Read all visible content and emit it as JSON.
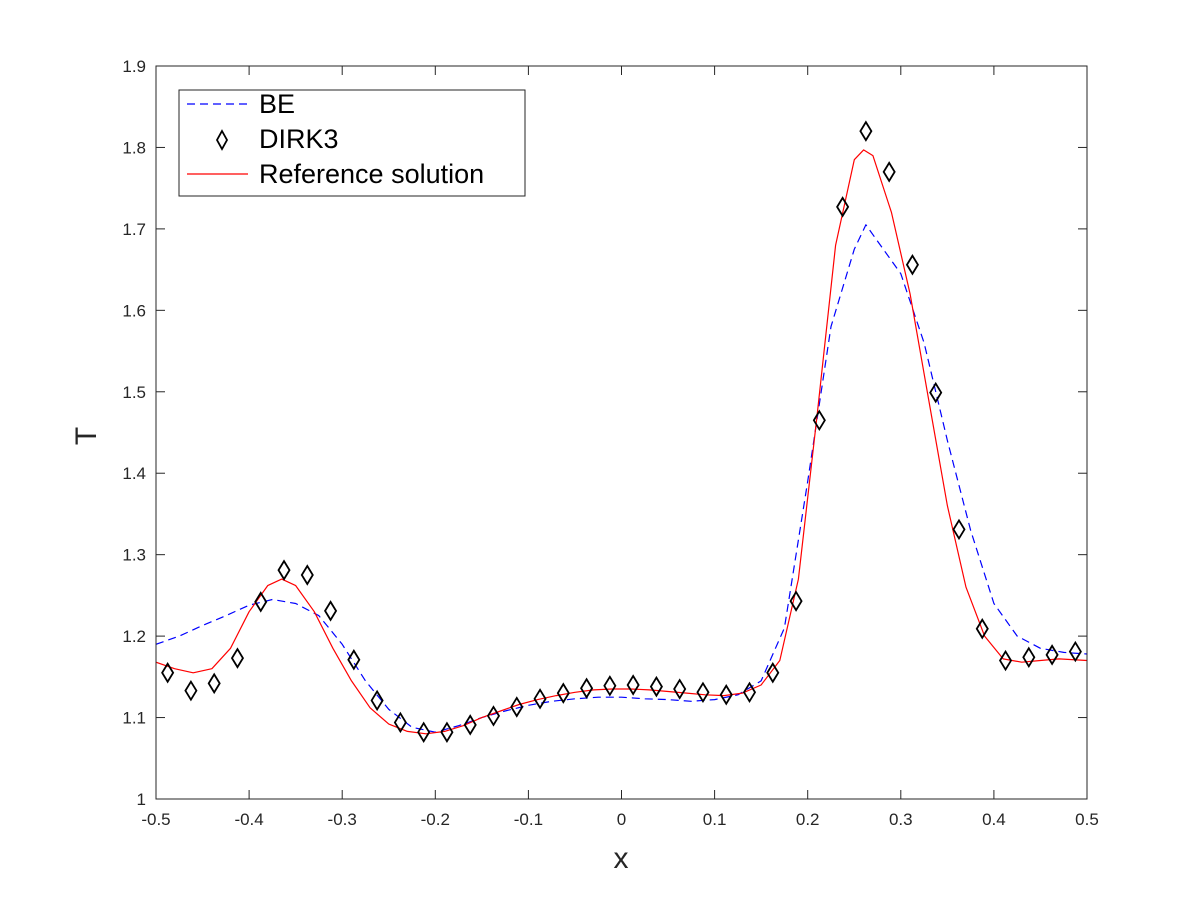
{
  "chart_data": {
    "type": "line",
    "xlabel": "x",
    "ylabel": "T",
    "xlim": [
      -0.5,
      0.5
    ],
    "ylim": [
      1.0,
      1.9
    ],
    "xticks": [
      -0.5,
      -0.4,
      -0.3,
      -0.2,
      -0.1,
      0,
      0.1,
      0.2,
      0.3,
      0.4,
      0.5
    ],
    "xtick_labels": [
      "-0.5",
      "-0.4",
      "-0.3",
      "-0.2",
      "-0.1",
      "0",
      "0.1",
      "0.2",
      "0.3",
      "0.4",
      "0.5"
    ],
    "yticks": [
      1.0,
      1.1,
      1.2,
      1.3,
      1.4,
      1.5,
      1.6,
      1.7,
      1.8,
      1.9
    ],
    "ytick_labels": [
      "1",
      "1.1",
      "1.2",
      "1.3",
      "1.4",
      "1.5",
      "1.6",
      "1.7",
      "1.8",
      "1.9"
    ],
    "grid": false,
    "legend_position": "top-left",
    "series": [
      {
        "name": "BE",
        "style": "dashed-line",
        "color": "#0000ff",
        "x": [
          -0.5,
          -0.475,
          -0.45,
          -0.425,
          -0.4,
          -0.375,
          -0.35,
          -0.325,
          -0.3,
          -0.275,
          -0.25,
          -0.225,
          -0.2,
          -0.175,
          -0.15,
          -0.125,
          -0.1,
          -0.075,
          -0.05,
          -0.025,
          0,
          0.025,
          0.05,
          0.075,
          0.1,
          0.125,
          0.15,
          0.175,
          0.2,
          0.225,
          0.25,
          0.2625,
          0.275,
          0.3,
          0.325,
          0.35,
          0.375,
          0.4,
          0.425,
          0.45,
          0.475,
          0.5
        ],
        "y": [
          1.19,
          1.2,
          1.213,
          1.225,
          1.238,
          1.245,
          1.24,
          1.225,
          1.19,
          1.145,
          1.11,
          1.088,
          1.082,
          1.09,
          1.1,
          1.108,
          1.115,
          1.12,
          1.123,
          1.125,
          1.125,
          1.123,
          1.122,
          1.12,
          1.122,
          1.128,
          1.145,
          1.21,
          1.39,
          1.58,
          1.675,
          1.705,
          1.685,
          1.645,
          1.56,
          1.44,
          1.33,
          1.24,
          1.2,
          1.185,
          1.18,
          1.178
        ]
      },
      {
        "name": "DIRK3",
        "style": "diamond-markers",
        "color": "#000000",
        "x": [
          -0.4875,
          -0.4625,
          -0.4375,
          -0.4125,
          -0.3875,
          -0.3625,
          -0.3375,
          -0.3125,
          -0.2875,
          -0.2625,
          -0.2375,
          -0.2125,
          -0.1875,
          -0.1625,
          -0.1375,
          -0.1125,
          -0.0875,
          -0.0625,
          -0.0375,
          -0.0125,
          0.0125,
          0.0375,
          0.0625,
          0.0875,
          0.1125,
          0.1375,
          0.1625,
          0.1875,
          0.2125,
          0.2375,
          0.2625,
          0.2875,
          0.3125,
          0.3375,
          0.3625,
          0.3875,
          0.4125,
          0.4375,
          0.4625,
          0.4875
        ],
        "y": [
          1.155,
          1.133,
          1.142,
          1.173,
          1.242,
          1.281,
          1.275,
          1.231,
          1.171,
          1.121,
          1.094,
          1.082,
          1.082,
          1.091,
          1.102,
          1.113,
          1.123,
          1.13,
          1.136,
          1.139,
          1.14,
          1.138,
          1.135,
          1.131,
          1.128,
          1.131,
          1.155,
          1.243,
          1.465,
          1.727,
          1.82,
          1.77,
          1.656,
          1.499,
          1.331,
          1.209,
          1.17,
          1.174,
          1.177,
          1.181
        ]
      },
      {
        "name": "Reference solution",
        "style": "solid-line",
        "color": "#ff0000",
        "x": [
          -0.5,
          -0.48,
          -0.46,
          -0.44,
          -0.42,
          -0.4,
          -0.38,
          -0.365,
          -0.35,
          -0.33,
          -0.31,
          -0.29,
          -0.27,
          -0.25,
          -0.23,
          -0.21,
          -0.19,
          -0.17,
          -0.15,
          -0.13,
          -0.11,
          -0.09,
          -0.07,
          -0.05,
          -0.03,
          -0.01,
          0.01,
          0.03,
          0.05,
          0.07,
          0.09,
          0.11,
          0.13,
          0.15,
          0.17,
          0.19,
          0.21,
          0.23,
          0.25,
          0.26,
          0.27,
          0.29,
          0.31,
          0.33,
          0.35,
          0.37,
          0.39,
          0.41,
          0.43,
          0.45,
          0.47,
          0.5
        ],
        "y": [
          1.168,
          1.16,
          1.155,
          1.16,
          1.185,
          1.23,
          1.262,
          1.27,
          1.262,
          1.23,
          1.185,
          1.145,
          1.112,
          1.092,
          1.083,
          1.08,
          1.083,
          1.09,
          1.1,
          1.108,
          1.116,
          1.122,
          1.127,
          1.131,
          1.134,
          1.135,
          1.135,
          1.134,
          1.132,
          1.13,
          1.128,
          1.127,
          1.13,
          1.14,
          1.17,
          1.27,
          1.47,
          1.68,
          1.785,
          1.797,
          1.79,
          1.72,
          1.62,
          1.49,
          1.36,
          1.26,
          1.2,
          1.172,
          1.168,
          1.17,
          1.172,
          1.17
        ]
      }
    ]
  }
}
